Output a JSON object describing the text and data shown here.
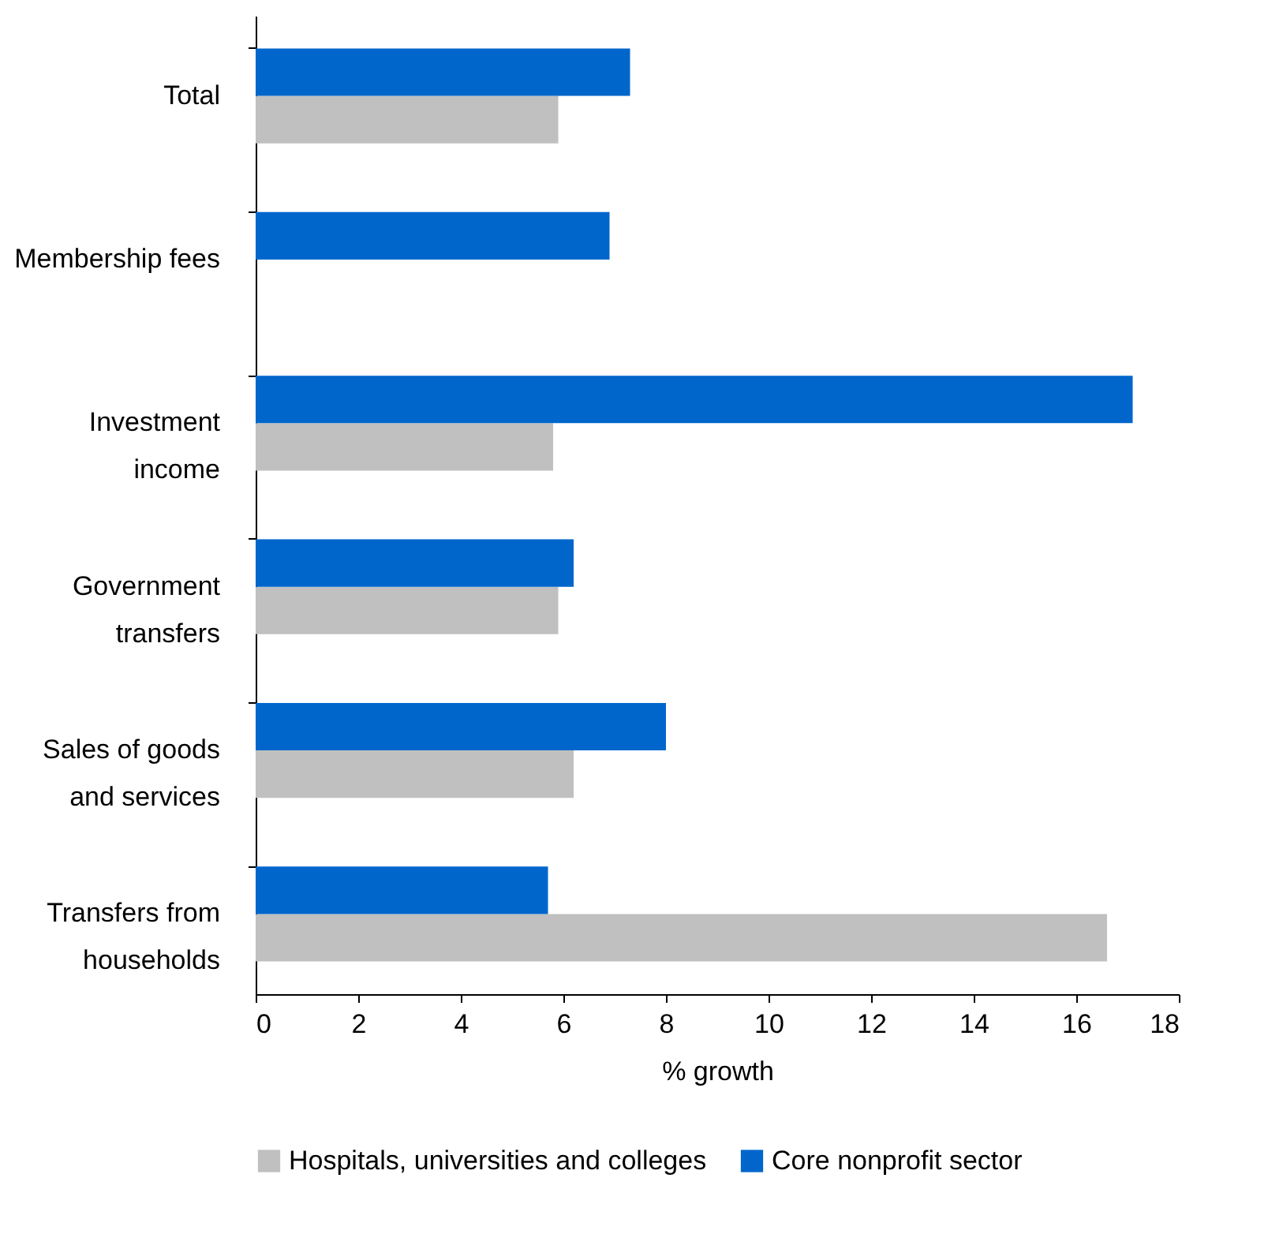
{
  "chart_data": {
    "type": "bar",
    "orientation": "horizontal",
    "categories": [
      "Total",
      "Membership fees",
      "Investment income",
      "Government transfers",
      "Sales of goods and services",
      "Transfers from households"
    ],
    "series": [
      {
        "name": "Hospitals, universities and colleges",
        "color": "#c0c0c0",
        "values": [
          5.9,
          null,
          5.8,
          5.9,
          6.2,
          16.6
        ]
      },
      {
        "name": "Core nonprofit sector",
        "color": "#0066cc",
        "values": [
          7.3,
          6.9,
          17.1,
          6.2,
          8.0,
          5.7
        ]
      }
    ],
    "xlabel": "% growth",
    "xlim": [
      0,
      18
    ],
    "xticks": [
      0,
      2,
      4,
      6,
      8,
      10,
      12,
      14,
      16,
      18
    ],
    "grid": false,
    "legend": "bottom"
  }
}
